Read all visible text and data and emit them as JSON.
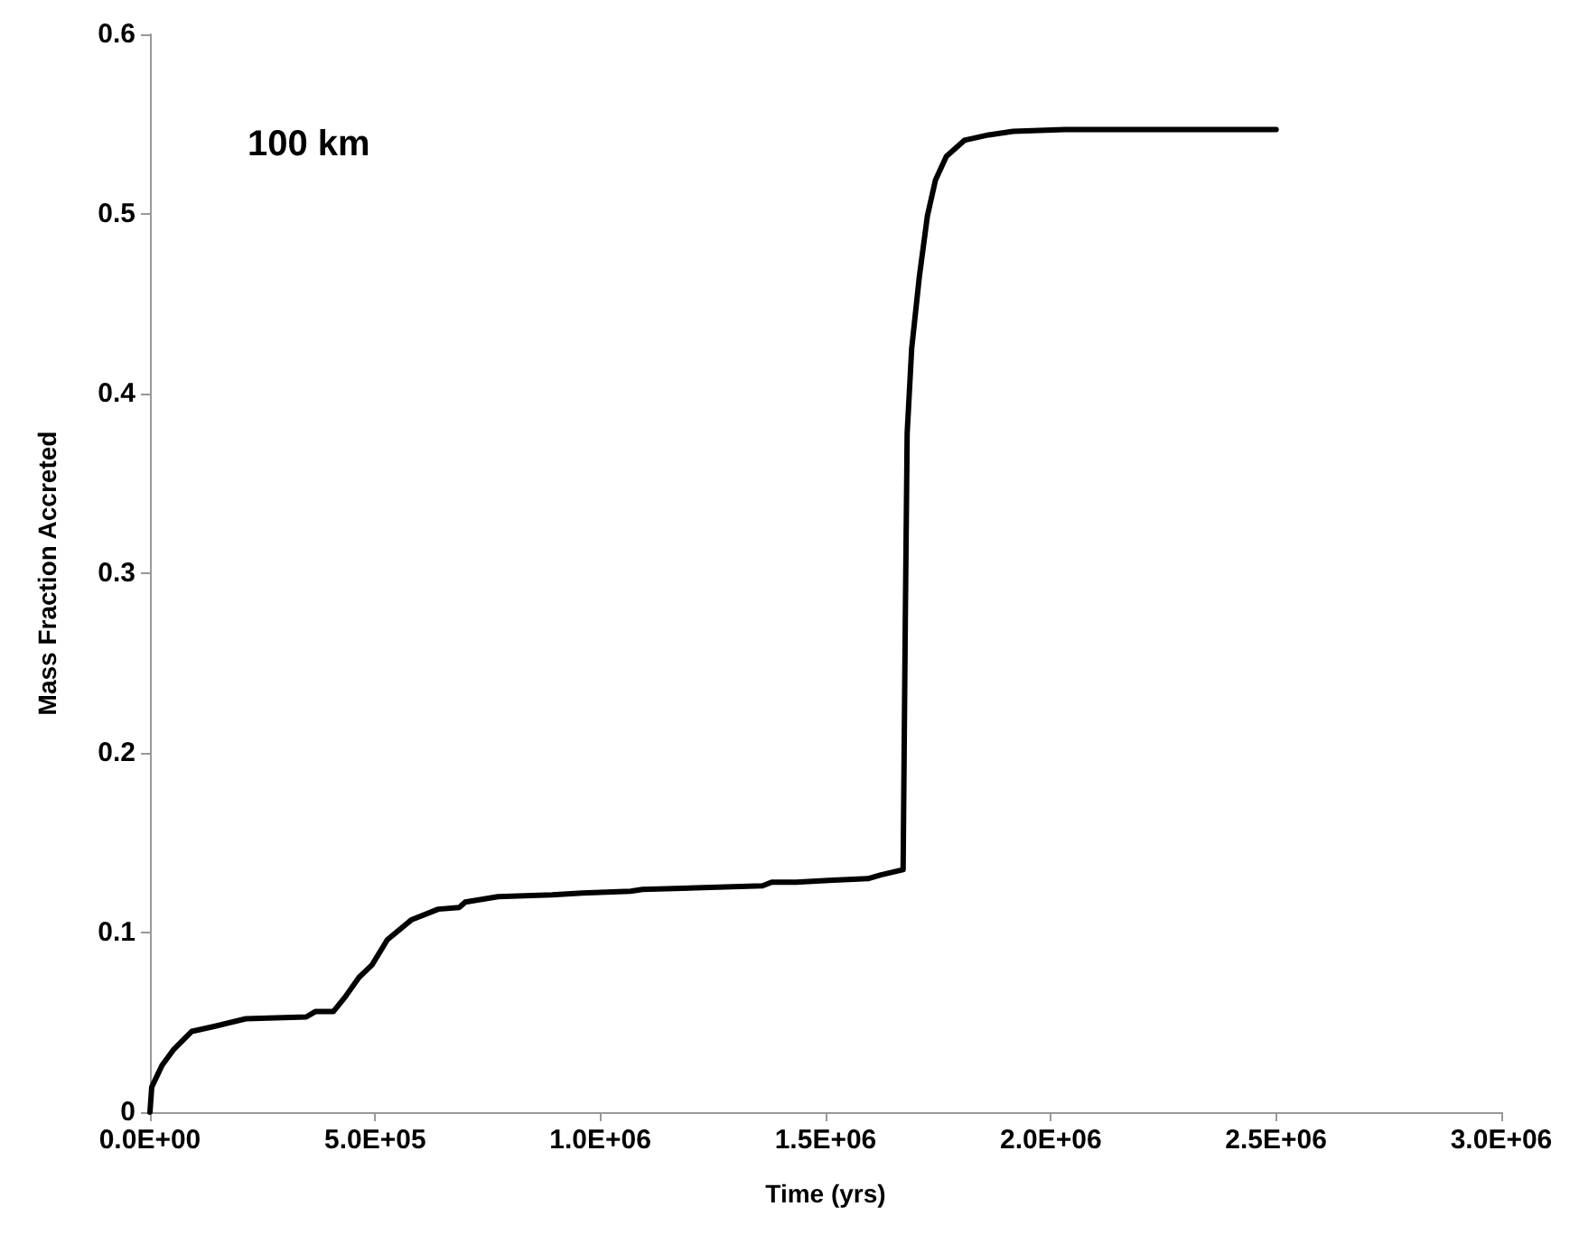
{
  "chart_data": {
    "type": "line",
    "xlabel": "Time (yrs)",
    "ylabel": "Mass Fraction Accreted",
    "annotations": [
      "100 km"
    ],
    "x": [
      0,
      4000,
      26700,
      53000,
      93000,
      147000,
      213000,
      347000,
      367000,
      407000,
      433000,
      464000,
      493000,
      527000,
      580000,
      640000,
      687000,
      700000,
      773000,
      893000,
      960000,
      1067000,
      1093000,
      1360000,
      1380000,
      1434000,
      1507000,
      1594000,
      1621000,
      1672000,
      1677000,
      1681000,
      1691000,
      1708000,
      1726000,
      1744000,
      1768000,
      1808000,
      1862000,
      1916000,
      2030000,
      2076000,
      2500000
    ],
    "series": [
      {
        "color": "#000000",
        "values": [
          0,
          0.014,
          0.026,
          0.035,
          0.045,
          0.048,
          0.052,
          0.053,
          0.056,
          0.056,
          0.064,
          0.075,
          0.082,
          0.096,
          0.107,
          0.113,
          0.114,
          0.117,
          0.12,
          0.121,
          0.122,
          0.123,
          0.124,
          0.126,
          0.128,
          0.128,
          0.129,
          0.13,
          0.132,
          0.135,
          0.277,
          0.378,
          0.425,
          0.465,
          0.499,
          0.519,
          0.532,
          0.541,
          0.544,
          0.546,
          0.547,
          0.547,
          0.547
        ]
      }
    ],
    "xlim": [
      0,
      3000000
    ],
    "xticks": [
      {
        "value": 0,
        "label": "0.0E+00"
      },
      {
        "value": 500000,
        "label": "5.0E+05"
      },
      {
        "value": 1000000,
        "label": "1.0E+06"
      },
      {
        "value": 1500000,
        "label": "1.5E+06"
      },
      {
        "value": 2000000,
        "label": "2.0E+06"
      },
      {
        "value": 2500000,
        "label": "2.5E+06"
      },
      {
        "value": 3000000,
        "label": "3.0E+06"
      }
    ],
    "ylim": [
      0,
      0.6
    ],
    "yticks": [
      0,
      0.1,
      0.2,
      0.3,
      0.4,
      0.5,
      0.6
    ],
    "grid": false,
    "marker": "none",
    "line_style": "solid"
  }
}
